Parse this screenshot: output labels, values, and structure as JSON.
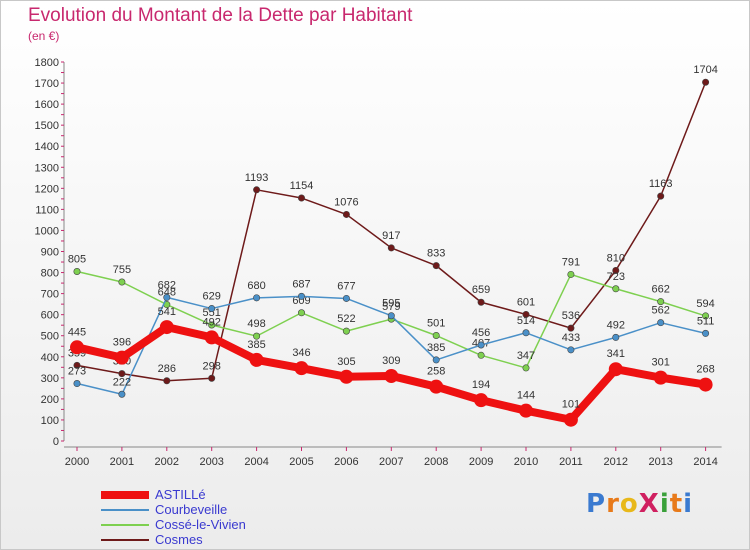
{
  "chart_data": {
    "type": "line",
    "title": "Evolution du Montant de la Dette par Habitant",
    "ylabel": "(en €)",
    "xlabel": "",
    "categories": [
      "2000",
      "2001",
      "2002",
      "2003",
      "2004",
      "2005",
      "2006",
      "2007",
      "2008",
      "2009",
      "2010",
      "2011",
      "2012",
      "2013",
      "2014"
    ],
    "ylim": [
      0,
      1800
    ],
    "yticks": [
      0,
      100,
      200,
      300,
      400,
      500,
      600,
      700,
      800,
      900,
      1000,
      1100,
      1200,
      1300,
      1400,
      1500,
      1600,
      1700,
      1800
    ],
    "grid": false,
    "legend": "bottom-left",
    "series": [
      {
        "name": "ASTILLé",
        "color": "#ee1111",
        "values": [
          445,
          396,
          541,
          492,
          385,
          346,
          305,
          309,
          258,
          194,
          144,
          101,
          341,
          301,
          268
        ]
      },
      {
        "name": "Courbeveille",
        "color": "#4a90c8",
        "values": [
          273,
          222,
          682,
          629,
          680,
          687,
          677,
          595,
          385,
          456,
          514,
          433,
          492,
          562,
          511
        ]
      },
      {
        "name": "Cossé-le-Vivien",
        "color": "#7ed050",
        "values": [
          805,
          755,
          648,
          551,
          498,
          609,
          522,
          579,
          501,
          407,
          347,
          791,
          723,
          662,
          594
        ]
      },
      {
        "name": "Cosmes",
        "color": "#6e1a1a",
        "values": [
          359,
          320,
          286,
          298,
          1193,
          1154,
          1076,
          917,
          833,
          659,
          601,
          536,
          810,
          1163,
          1704
        ]
      }
    ]
  },
  "logo": {
    "text": "ProXiti"
  }
}
